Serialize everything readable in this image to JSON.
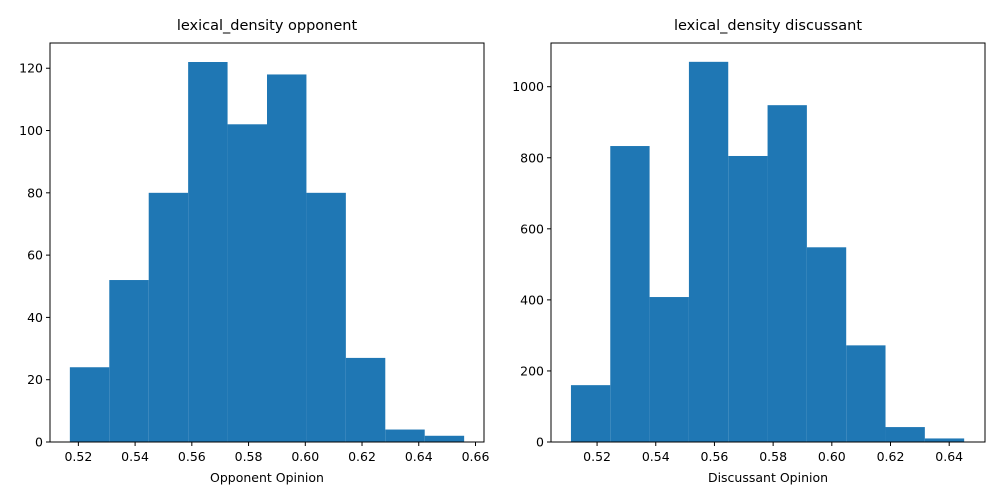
{
  "colors": {
    "bar": "#1f77b4",
    "axis": "#000000",
    "background": "#ffffff"
  },
  "chart_data": [
    {
      "type": "bar",
      "title": "lexical_density opponent",
      "xlabel": "Opponent Opinion",
      "ylabel": "",
      "grid": false,
      "xlim": [
        0.51,
        0.663
      ],
      "ylim": [
        0,
        128.1
      ],
      "bin_edges": [
        0.517,
        0.5309,
        0.5448,
        0.5587,
        0.5726,
        0.5865,
        0.6004,
        0.6143,
        0.6282,
        0.6421,
        0.656
      ],
      "values": [
        24,
        52,
        80,
        122,
        102,
        118,
        80,
        27,
        4,
        2
      ],
      "xticks": [
        0.52,
        0.54,
        0.56,
        0.58,
        0.6,
        0.62,
        0.64,
        0.66
      ],
      "xtick_labels": [
        "0.52",
        "0.54",
        "0.56",
        "0.58",
        "0.60",
        "0.62",
        "0.64",
        "0.66"
      ],
      "yticks": [
        0,
        20,
        40,
        60,
        80,
        100,
        120
      ],
      "ytick_labels": [
        "0",
        "20",
        "40",
        "60",
        "80",
        "100",
        "120"
      ]
    },
    {
      "type": "bar",
      "title": "lexical_density discussant",
      "xlabel": "Discussant Opinion",
      "ylabel": "",
      "grid": false,
      "xlim": [
        0.5043,
        0.6522
      ],
      "ylim": [
        0,
        1123
      ],
      "bin_edges": [
        0.5111,
        0.5245,
        0.5379,
        0.5513,
        0.5647,
        0.5781,
        0.5915,
        0.6049,
        0.6183,
        0.6317,
        0.6451
      ],
      "values": [
        160,
        833,
        408,
        1070,
        805,
        948,
        548,
        272,
        42,
        10
      ],
      "xticks": [
        0.52,
        0.54,
        0.56,
        0.58,
        0.6,
        0.62,
        0.64
      ],
      "xtick_labels": [
        "0.52",
        "0.54",
        "0.56",
        "0.58",
        "0.60",
        "0.62",
        "0.64"
      ],
      "yticks": [
        0,
        200,
        400,
        600,
        800,
        1000
      ],
      "ytick_labels": [
        "0",
        "200",
        "400",
        "600",
        "800",
        "1000"
      ]
    }
  ]
}
